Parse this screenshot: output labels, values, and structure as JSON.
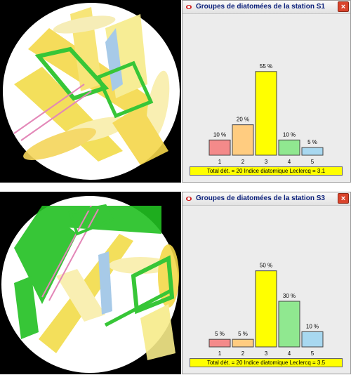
{
  "windows": [
    {
      "title": "Groupes de diatomées de la station S1",
      "close_label": "×",
      "summary": "Total dét. = 20 Indice diatomique Leclercq = 3.1",
      "chart_data": {
        "type": "bar",
        "categories": [
          "1",
          "2",
          "3",
          "4",
          "5"
        ],
        "values": [
          10,
          20,
          55,
          10,
          5
        ],
        "labels": [
          "10 %",
          "20 %",
          "55 %",
          "10 %",
          "5 %"
        ],
        "colors": [
          "#f48a8a",
          "#ffcc80",
          "#ffff00",
          "#90e890",
          "#a8d8f0"
        ],
        "ylim": [
          0,
          60
        ]
      }
    },
    {
      "title": "Groupes de diatomées de la station S3",
      "close_label": "×",
      "summary": "Total dét. = 20 Indice diatomique Leclercq = 3.5",
      "chart_data": {
        "type": "bar",
        "categories": [
          "1",
          "2",
          "3",
          "4",
          "5"
        ],
        "values": [
          5,
          5,
          50,
          30,
          10
        ],
        "labels": [
          "5 %",
          "5 %",
          "50 %",
          "30 %",
          "10 %"
        ],
        "colors": [
          "#f48a8a",
          "#ffcc80",
          "#ffff00",
          "#90e890",
          "#a8d8f0"
        ],
        "ylim": [
          0,
          60
        ]
      }
    }
  ]
}
